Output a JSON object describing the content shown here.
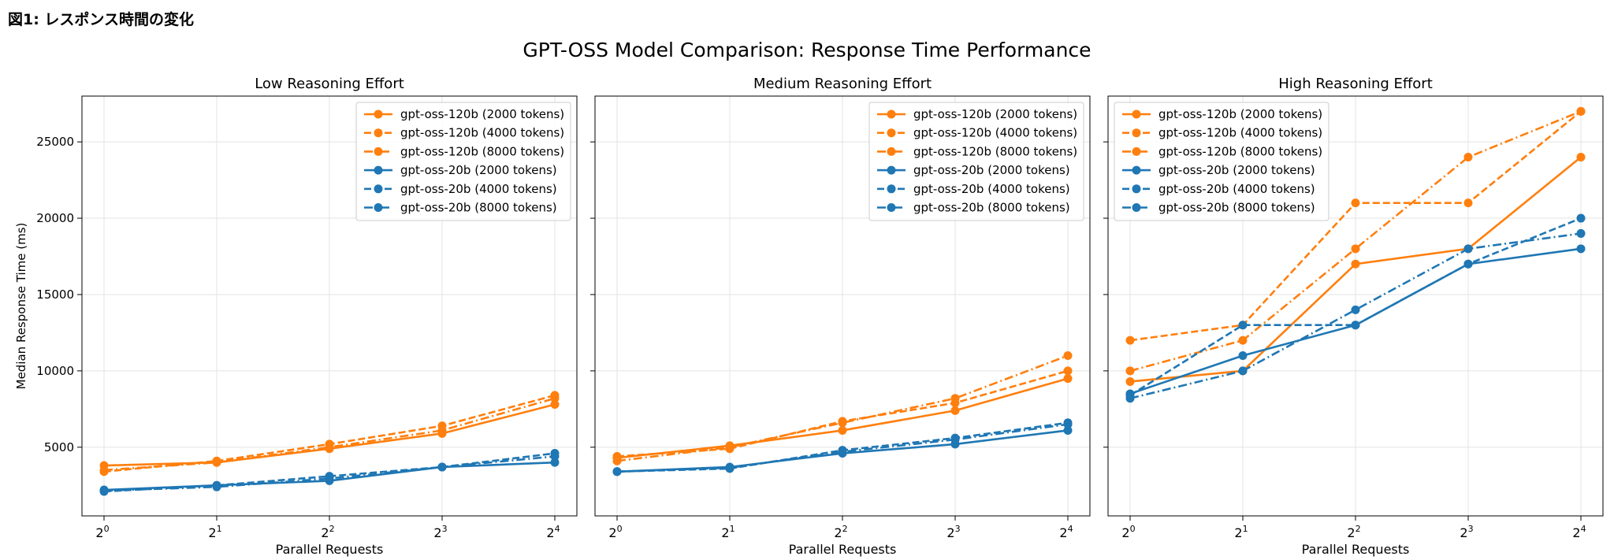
{
  "page": {
    "caption": "図1: レスポンス時間の変化"
  },
  "figure": {
    "suptitle": "GPT-OSS Model Comparison: Response Time Performance"
  },
  "chart_data": {
    "type": "line",
    "xlabel": "Parallel Requests",
    "ylabel": "Median Response Time (ms)",
    "x": [
      1,
      2,
      4,
      8,
      16
    ],
    "x_tick_labels": [
      {
        "base": "2",
        "exp": "0"
      },
      {
        "base": "2",
        "exp": "1"
      },
      {
        "base": "2",
        "exp": "2"
      },
      {
        "base": "2",
        "exp": "3"
      },
      {
        "base": "2",
        "exp": "4"
      }
    ],
    "x_scale": "log2",
    "y_ticks": [
      5000,
      10000,
      15000,
      20000,
      25000
    ],
    "ylim": [
      500,
      28000
    ],
    "grid": true,
    "colors": {
      "orange": "#ff7f0e",
      "blue": "#1f77b4"
    },
    "panels": [
      {
        "title": "Low Reasoning Effort",
        "legend_position": "top-right",
        "series": [
          {
            "name": "gpt-oss-120b (2000 tokens)",
            "color": "#ff7f0e",
            "dash": "solid",
            "values": [
              3800,
              4000,
              4900,
              5900,
              7800
            ]
          },
          {
            "name": "gpt-oss-120b (4000 tokens)",
            "color": "#ff7f0e",
            "dash": "dashed",
            "values": [
              3400,
              4100,
              5200,
              6400,
              8400
            ]
          },
          {
            "name": "gpt-oss-120b (8000 tokens)",
            "color": "#ff7f0e",
            "dash": "dashdot",
            "values": [
              3500,
              4000,
              5000,
              6100,
              8200
            ]
          },
          {
            "name": "gpt-oss-20b (2000 tokens)",
            "color": "#1f77b4",
            "dash": "solid",
            "values": [
              2200,
              2500,
              2800,
              3700,
              4000
            ]
          },
          {
            "name": "gpt-oss-20b (4000 tokens)",
            "color": "#1f77b4",
            "dash": "dashed",
            "values": [
              2100,
              2500,
              3100,
              3700,
              4600
            ]
          },
          {
            "name": "gpt-oss-20b (8000 tokens)",
            "color": "#1f77b4",
            "dash": "dashdot",
            "values": [
              2150,
              2400,
              2950,
              3700,
              4400
            ]
          }
        ]
      },
      {
        "title": "Medium Reasoning Effort",
        "legend_position": "top-right",
        "series": [
          {
            "name": "gpt-oss-120b (2000 tokens)",
            "color": "#ff7f0e",
            "dash": "solid",
            "values": [
              4300,
              5100,
              6100,
              7400,
              9500
            ]
          },
          {
            "name": "gpt-oss-120b (4000 tokens)",
            "color": "#ff7f0e",
            "dash": "dashed",
            "values": [
              4400,
              4900,
              6700,
              7900,
              10000
            ]
          },
          {
            "name": "gpt-oss-120b (8000 tokens)",
            "color": "#ff7f0e",
            "dash": "dashdot",
            "values": [
              4100,
              5000,
              6600,
              8200,
              11000
            ]
          },
          {
            "name": "gpt-oss-20b (2000 tokens)",
            "color": "#1f77b4",
            "dash": "solid",
            "values": [
              3400,
              3700,
              4600,
              5200,
              6100
            ]
          },
          {
            "name": "gpt-oss-20b (4000 tokens)",
            "color": "#1f77b4",
            "dash": "dashed",
            "values": [
              3400,
              3600,
              4800,
              5600,
              6600
            ]
          },
          {
            "name": "gpt-oss-20b (8000 tokens)",
            "color": "#1f77b4",
            "dash": "dashdot",
            "values": [
              3400,
              3650,
              4700,
              5500,
              6500
            ]
          }
        ]
      },
      {
        "title": "High Reasoning Effort",
        "legend_position": "top-left",
        "series": [
          {
            "name": "gpt-oss-120b (2000 tokens)",
            "color": "#ff7f0e",
            "dash": "solid",
            "values": [
              9300,
              10000,
              17000,
              18000,
              24000
            ]
          },
          {
            "name": "gpt-oss-120b (4000 tokens)",
            "color": "#ff7f0e",
            "dash": "dashed",
            "values": [
              12000,
              13000,
              21000,
              21000,
              27000
            ]
          },
          {
            "name": "gpt-oss-120b (8000 tokens)",
            "color": "#ff7f0e",
            "dash": "dashdot",
            "values": [
              10000,
              12000,
              18000,
              24000,
              27000
            ]
          },
          {
            "name": "gpt-oss-20b (2000 tokens)",
            "color": "#1f77b4",
            "dash": "solid",
            "values": [
              8500,
              11000,
              13000,
              17000,
              18000
            ]
          },
          {
            "name": "gpt-oss-20b (4000 tokens)",
            "color": "#1f77b4",
            "dash": "dashed",
            "values": [
              8400,
              13000,
              13000,
              17000,
              20000
            ]
          },
          {
            "name": "gpt-oss-20b (8000 tokens)",
            "color": "#1f77b4",
            "dash": "dashdot",
            "values": [
              8200,
              10000,
              14000,
              18000,
              19000
            ]
          }
        ]
      }
    ]
  }
}
